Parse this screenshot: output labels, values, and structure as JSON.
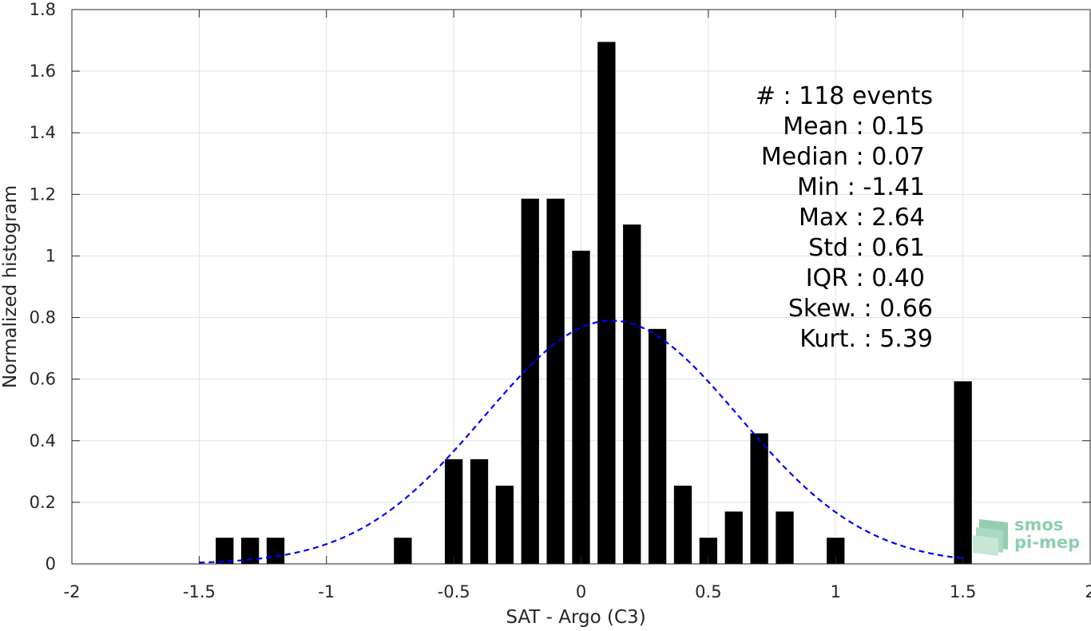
{
  "chart_data": {
    "type": "bar",
    "xlabel": "SAT - Argo (C3)",
    "ylabel": "Normalized histogram",
    "xlim": [
      -2,
      2
    ],
    "ylim": [
      0,
      1.8
    ],
    "x_ticks": [
      -2,
      -1.5,
      -1,
      -0.5,
      0,
      0.5,
      1,
      1.5,
      2
    ],
    "x_tick_labels": [
      "-2",
      "-1.5",
      "-1",
      "-0.5",
      "0",
      "0.5",
      "1",
      "1.5",
      "2"
    ],
    "y_ticks": [
      0,
      0.2,
      0.4,
      0.6,
      0.8,
      1,
      1.2,
      1.4,
      1.6,
      1.8
    ],
    "y_tick_labels": [
      "0",
      "0.2",
      "0.4",
      "0.6",
      "0.8",
      "1",
      "1.2",
      "1.4",
      "1.6",
      "1.8"
    ],
    "grid": true,
    "bar_color": "#000000",
    "bar_width": 0.07,
    "bars": [
      {
        "x": -1.4,
        "value": 0.085
      },
      {
        "x": -1.3,
        "value": 0.085
      },
      {
        "x": -1.2,
        "value": 0.085
      },
      {
        "x": -0.7,
        "value": 0.085
      },
      {
        "x": -0.5,
        "value": 0.34
      },
      {
        "x": -0.4,
        "value": 0.34
      },
      {
        "x": -0.3,
        "value": 0.254
      },
      {
        "x": -0.2,
        "value": 1.186
      },
      {
        "x": -0.1,
        "value": 1.186
      },
      {
        "x": 0.0,
        "value": 1.017
      },
      {
        "x": 0.1,
        "value": 1.695
      },
      {
        "x": 0.2,
        "value": 1.102
      },
      {
        "x": 0.3,
        "value": 0.763
      },
      {
        "x": 0.4,
        "value": 0.254
      },
      {
        "x": 0.5,
        "value": 0.085
      },
      {
        "x": 0.6,
        "value": 0.17
      },
      {
        "x": 0.7,
        "value": 0.424
      },
      {
        "x": 0.8,
        "value": 0.17
      },
      {
        "x": 1.0,
        "value": 0.085
      },
      {
        "x": 1.5,
        "value": 0.593
      }
    ],
    "fit_curve": {
      "type": "gaussian",
      "color": "#0000ff",
      "style": "dashed",
      "mean": 0.12,
      "sigma": 0.5,
      "peak": 0.79,
      "x_range": [
        -1.5,
        1.5
      ]
    }
  },
  "stats": {
    "events": "#  : 118 events",
    "mean": "Mean : 0.15",
    "median": "Median : 0.07",
    "min": "Min : -1.41",
    "max": "Max : 2.64",
    "std": "Std : 0.61",
    "iqr": "IQR : 0.40",
    "skew": "Skew. : 0.66",
    "kurt": "Kurt. : 5.39"
  },
  "logo": {
    "line1": "smos",
    "line2": "pi-mep",
    "color": "#8ccfae"
  }
}
